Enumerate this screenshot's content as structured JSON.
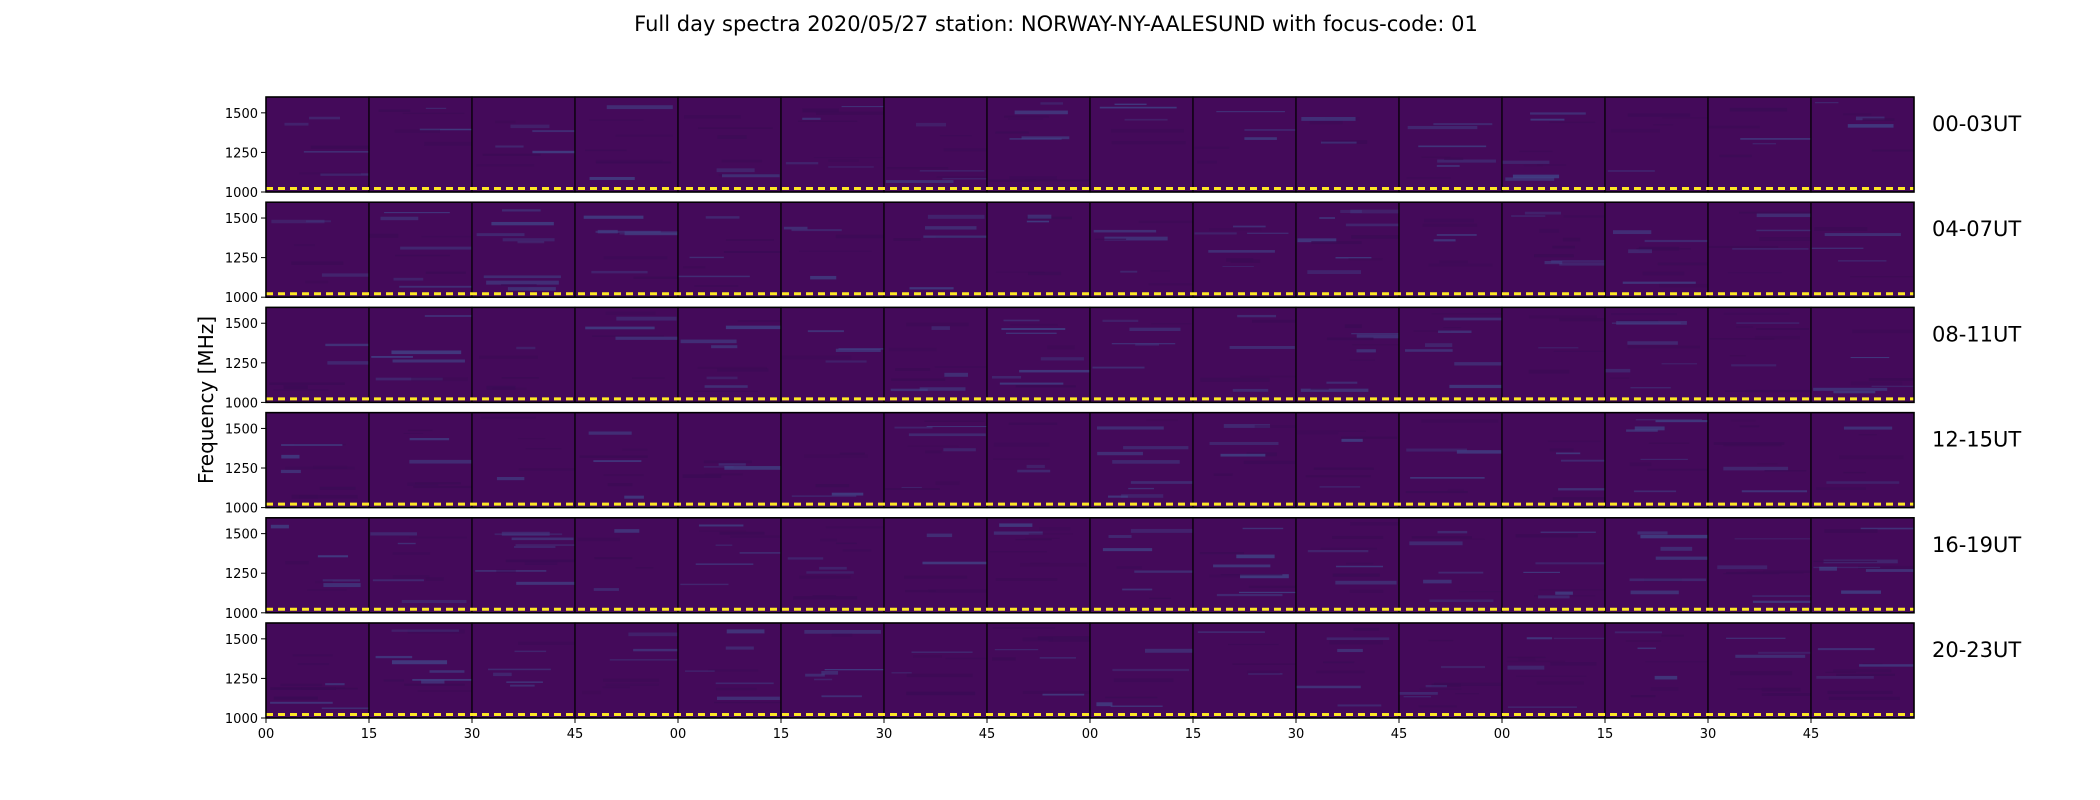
{
  "chart_data": {
    "type": "heatmap",
    "title": "Full day spectra 2020/05/27 station: NORWAY-NY-AALESUND with focus-code: 01",
    "ylabel": "Frequency [MHz]",
    "xlabel": "",
    "ylim": [
      1000,
      1600
    ],
    "y_ticks": [
      "1000",
      "1250",
      "1500"
    ],
    "x_ticks": [
      "00",
      "15",
      "30",
      "45",
      "00",
      "15",
      "30",
      "45",
      "00",
      "15",
      "30",
      "45",
      "00",
      "15",
      "30",
      "45"
    ],
    "rows": [
      {
        "label": "00-03UT"
      },
      {
        "label": "04-07UT"
      },
      {
        "label": "08-11UT"
      },
      {
        "label": "12-15UT"
      },
      {
        "label": "16-19UT"
      },
      {
        "label": "20-23UT"
      }
    ],
    "panels_per_row": 16,
    "minutes_per_panel": 15,
    "colormap": "viridis",
    "colors": {
      "background": "#440a5a",
      "low": "#3b0b55",
      "mid": "#414487",
      "baseline": "#fde725",
      "border": "#000000"
    }
  }
}
